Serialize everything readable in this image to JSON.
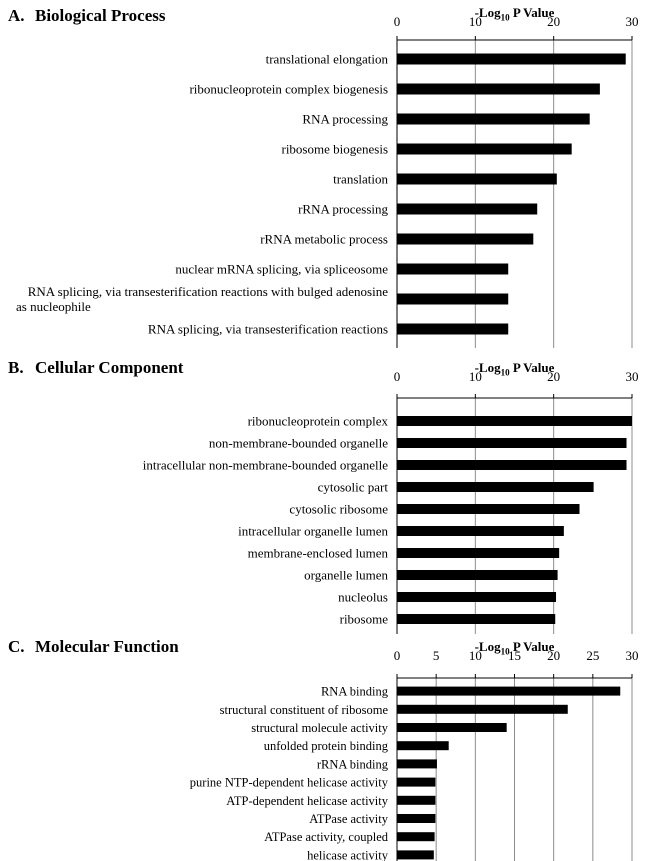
{
  "chart_data": [
    {
      "type": "bar",
      "orientation": "horizontal",
      "panel_letter": "A.",
      "title": "Biological Process",
      "xlabel_prefix": "-Log",
      "xlabel_sub": "10",
      "xlabel_suffix": " P Value",
      "xlim": [
        0,
        30
      ],
      "xticks": [
        0,
        10,
        20,
        30
      ],
      "grid": true,
      "categories": [
        "translational elongation",
        "ribonucleoprotein complex biogenesis",
        "RNA processing",
        "ribosome biogenesis",
        "translation",
        "rRNA processing",
        "rRNA metabolic process",
        "nuclear mRNA splicing, via spliceosome",
        "RNA splicing, via transesterification reactions with bulged adenosine as nucleophile",
        "RNA splicing, via transesterification reactions"
      ],
      "values": [
        29.2,
        25.9,
        24.6,
        22.3,
        20.4,
        17.9,
        17.4,
        14.2,
        14.2,
        14.2
      ]
    },
    {
      "type": "bar",
      "orientation": "horizontal",
      "panel_letter": "B.",
      "title": "Cellular Component",
      "xlabel_prefix": "-Log",
      "xlabel_sub": "10",
      "xlabel_suffix": " P Value",
      "xlim": [
        0,
        30
      ],
      "xticks": [
        0,
        10,
        20,
        30
      ],
      "grid": true,
      "categories": [
        "ribonucleoprotein complex",
        "non-membrane-bounded organelle",
        "intracellular non-membrane-bounded organelle",
        "cytosolic part",
        "cytosolic ribosome",
        "intracellular organelle lumen",
        "membrane-enclosed lumen",
        "organelle lumen",
        "nucleolus",
        "ribosome"
      ],
      "values": [
        30.0,
        29.3,
        29.3,
        25.1,
        23.3,
        21.3,
        20.7,
        20.5,
        20.3,
        20.2
      ]
    },
    {
      "type": "bar",
      "orientation": "horizontal",
      "panel_letter": "C.",
      "title": "Molecular Function",
      "xlabel_prefix": "-Log",
      "xlabel_sub": "10",
      "xlabel_suffix": " P Value",
      "xlim": [
        0,
        30
      ],
      "xticks": [
        0,
        5,
        10,
        15,
        20,
        25,
        30
      ],
      "grid": true,
      "categories": [
        "RNA binding",
        "structural constituent of ribosome",
        "structural molecule activity",
        "unfolded protein binding",
        "rRNA binding",
        "purine NTP-dependent helicase activity",
        "ATP-dependent helicase activity",
        "ATPase activity",
        "ATPase activity, coupled",
        "helicase activity"
      ],
      "values": [
        28.5,
        21.8,
        14.0,
        6.6,
        5.1,
        4.9,
        4.9,
        4.9,
        4.8,
        4.7
      ]
    }
  ]
}
